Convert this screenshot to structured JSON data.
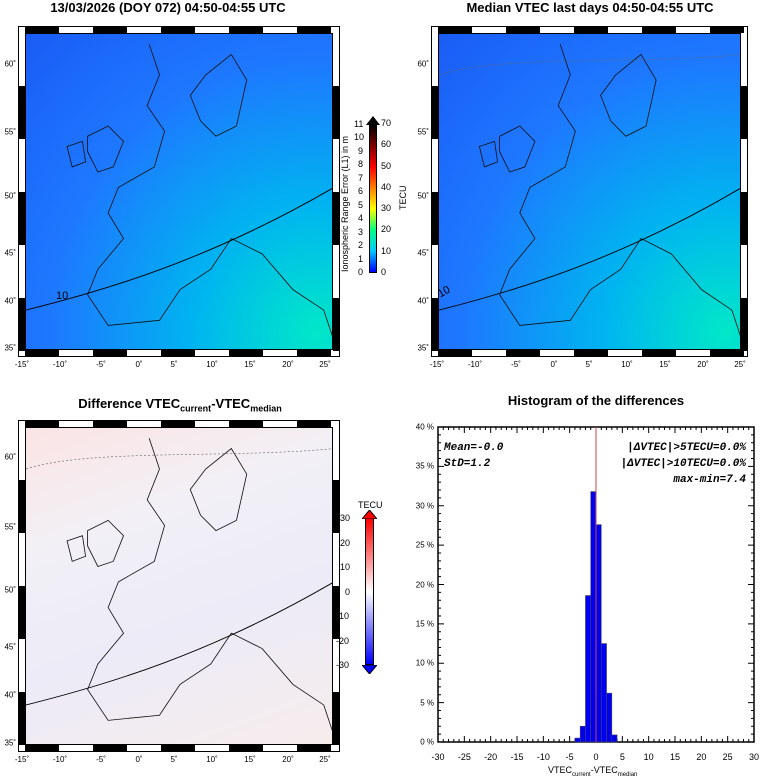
{
  "panels": {
    "current": {
      "title": "13/03/2026 (DOY 072) 04:50-04:55 UTC",
      "contour_label": "10",
      "colorbar": {
        "left_label": "Ionospheric Range Error (L1) in m",
        "left_ticks": [
          "0",
          "1",
          "2",
          "3",
          "4",
          "5",
          "6",
          "7",
          "8",
          "9",
          "10",
          "11"
        ],
        "right_label": "TECU",
        "right_ticks": [
          "0",
          "10",
          "20",
          "30",
          "40",
          "50",
          "60",
          "70"
        ],
        "colors": [
          "#0000ff",
          "#00c8ff",
          "#00ff80",
          "#ffff00",
          "#ff8000",
          "#ff0000",
          "#800000",
          "#000000"
        ]
      }
    },
    "median": {
      "title": "Median VTEC last  days 04:50-04:55 UTC",
      "contour_label": "10"
    },
    "difference": {
      "title_main": "Difference VTEC",
      "title_sub1": "current",
      "title_mid": "-VTEC",
      "title_sub2": "median",
      "colorbar": {
        "label": "TECU",
        "ticks": [
          "30",
          "20",
          "10",
          "0",
          "-10",
          "-20",
          "-30"
        ],
        "colors": [
          "#ff0000",
          "#ffffff",
          "#0000ff"
        ]
      }
    }
  },
  "map_axes": {
    "lon_ticks": [
      "-15˚",
      "-10˚",
      "-5˚",
      "0˚",
      "5˚",
      "10˚",
      "15˚",
      "20˚",
      "25˚"
    ],
    "lat_ticks": [
      "60˚",
      "55˚",
      "50˚",
      "45˚",
      "40˚",
      "35˚"
    ]
  },
  "chart_data": {
    "type": "bar",
    "title": "Histogram of the differences",
    "xlabel_main": "VTEC",
    "xlabel_sub1": "current",
    "xlabel_mid": "-VTEC",
    "xlabel_sub2": "median",
    "xlim": [
      -30,
      30
    ],
    "ylim": [
      0,
      40
    ],
    "x_ticks": [
      "-30",
      "-25",
      "-20",
      "-15",
      "-10",
      "-5",
      "0",
      "5",
      "10",
      "15",
      "20",
      "25",
      "30"
    ],
    "y_ticks": [
      "0 %",
      "5 %",
      "10 %",
      "15 %",
      "20 %",
      "25 %",
      "30 %",
      "35 %",
      "40 %"
    ],
    "bins": [
      [
        -4,
        -3
      ],
      [
        -3,
        -2
      ],
      [
        -2,
        -1
      ],
      [
        -1,
        0
      ],
      [
        0,
        1
      ],
      [
        1,
        2
      ],
      [
        2,
        3
      ],
      [
        3,
        4
      ]
    ],
    "values": [
      0.5,
      2.0,
      18.6,
      31.8,
      27.6,
      12.5,
      6.2,
      0.9
    ],
    "bar_color": "#0000ee",
    "reference_line_x": 0,
    "reference_line_color": "#cc4444",
    "annotations": {
      "mean": "Mean=-0.0",
      "std": "StD=1.2",
      "gt5": "|ΔVTEC|>5TECU=0.0%",
      "gt10": "|ΔVTEC|>10TECU=0.0%",
      "range": "max-min=7.4"
    }
  }
}
